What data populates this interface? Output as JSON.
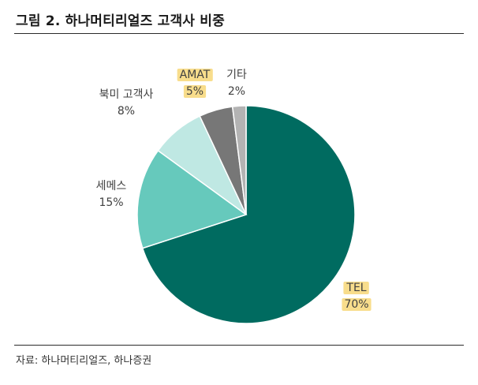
{
  "title": "그림 2. 하나머티리얼즈 고객사 비중",
  "source": "자료: 하나머티리얼즈, 하나증권",
  "chart_data": {
    "type": "pie",
    "start_angle_deg": 0,
    "direction": "clockwise",
    "slices": [
      {
        "name": "TEL",
        "value": 70,
        "label": "70%",
        "color": "#006b60",
        "highlight": true
      },
      {
        "name": "세메스",
        "value": 15,
        "label": "15%",
        "color": "#66c9bc",
        "highlight": false
      },
      {
        "name": "북미 고객사",
        "value": 8,
        "label": "8%",
        "color": "#bfe8e3",
        "highlight": false
      },
      {
        "name": "AMAT",
        "value": 5,
        "label": "5%",
        "color": "#777777",
        "highlight": true
      },
      {
        "name": "기타",
        "value": 2,
        "label": "2%",
        "color": "#b3b3b3",
        "highlight": false
      }
    ]
  }
}
